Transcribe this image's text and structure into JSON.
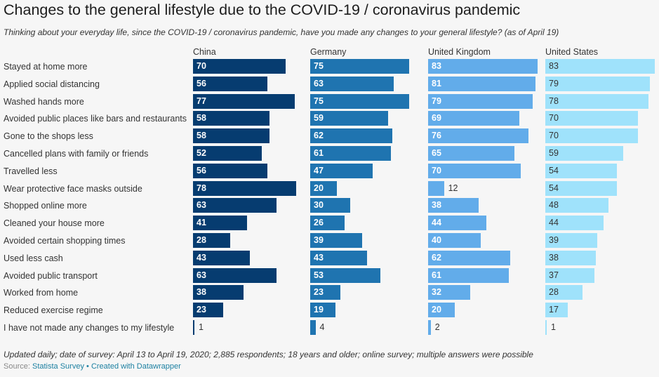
{
  "title": "Changes to the general lifestyle due to the COVID-19 / coronavirus pandemic",
  "subtitle": "Thinking about your everyday life, since the COVID-19 / coronavirus pandemic, have you made any changes to your general lifestyle? (as of April 19)",
  "notes": "Updated daily; date of survey: April 13 to April 19, 2020; 2,885 respondents; 18 years and older; online survey; multiple answers were possible",
  "source": {
    "prefix": "Source:",
    "link1": "Statista Survey",
    "separator": "•",
    "link2": "Created with Datawrapper"
  },
  "chart_data": {
    "type": "bar",
    "orientation": "horizontal",
    "layout": "small-multiples",
    "xlim": [
      0,
      85
    ],
    "categories": [
      "Stayed at home more",
      "Applied social distancing",
      "Washed hands more",
      "Avoided public places like bars and restaurants",
      "Gone to the shops less",
      "Cancelled plans with family or friends",
      "Travelled less",
      "Wear protective face masks outside",
      "Shopped online more",
      "Cleaned your house more",
      "Avoided certain shopping times",
      "Used less cash",
      "Avoided public transport",
      "Worked from home",
      "Reduced exercise regime",
      "I have not made any changes to my lifestyle"
    ],
    "series": [
      {
        "name": "China",
        "color": "#063c70",
        "values": [
          70,
          56,
          77,
          58,
          58,
          52,
          56,
          78,
          63,
          41,
          28,
          43,
          63,
          38,
          23,
          1
        ]
      },
      {
        "name": "Germany",
        "color": "#1f74b0",
        "values": [
          75,
          63,
          75,
          59,
          62,
          61,
          47,
          20,
          30,
          26,
          39,
          43,
          53,
          23,
          19,
          4
        ]
      },
      {
        "name": "United Kingdom",
        "color": "#62acea",
        "values": [
          83,
          81,
          79,
          69,
          76,
          65,
          70,
          12,
          38,
          44,
          40,
          62,
          61,
          32,
          20,
          2
        ]
      },
      {
        "name": "United States",
        "color": "#9fe2fb",
        "values": [
          83,
          79,
          78,
          70,
          70,
          59,
          54,
          54,
          48,
          44,
          39,
          38,
          37,
          28,
          17,
          1
        ]
      }
    ]
  }
}
